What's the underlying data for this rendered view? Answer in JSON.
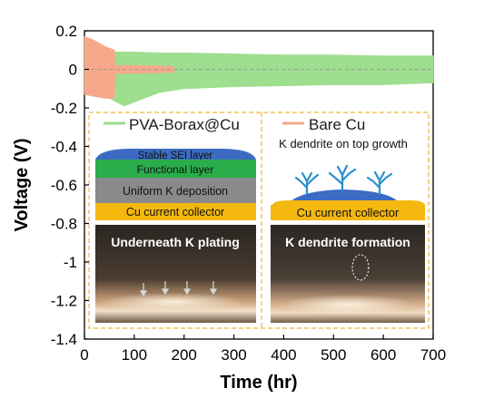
{
  "chart_data": {
    "type": "line",
    "xlabel": "Time (hr)",
    "ylabel": "Voltage (V)",
    "xlim": [
      0,
      700
    ],
    "ylim": [
      -1.4,
      0.2
    ],
    "xticks": [
      0,
      100,
      200,
      300,
      400,
      500,
      600,
      700
    ],
    "xtick_labels": [
      "0",
      "100",
      "200",
      "300",
      "400",
      "500",
      "600",
      "700"
    ],
    "yticks": [
      0.2,
      0,
      -0.2,
      -0.4,
      -0.6,
      -0.8,
      -1,
      -1.2,
      -1.4
    ],
    "ytick_labels": [
      "0.2",
      "0",
      "-0.2",
      "-0.4",
      "-0.6",
      "-0.8",
      "-1",
      "-1.2",
      "-1.4"
    ],
    "grid": false,
    "reference_line": {
      "y": 0,
      "color": "#9b9b9b",
      "style": "dashed"
    },
    "series": [
      {
        "name": "PVA-Borax@Cu",
        "color": "#9ede8f",
        "envelope_x": [
          5,
          30,
          50,
          80,
          100,
          150,
          200,
          300,
          400,
          500,
          600,
          700
        ],
        "envelope_upper": [
          0.11,
          0.1,
          0.09,
          0.09,
          0.09,
          0.085,
          0.085,
          0.08,
          0.075,
          0.075,
          0.07,
          0.07
        ],
        "envelope_lower": [
          -0.13,
          -0.14,
          -0.15,
          -0.19,
          -0.17,
          -0.12,
          -0.1,
          -0.09,
          -0.085,
          -0.08,
          -0.08,
          -0.07
        ]
      },
      {
        "name": "Bare Cu",
        "color": "#f6a98a",
        "envelope_x": [
          0,
          20,
          40,
          60,
          62,
          100,
          170,
          180
        ],
        "envelope_upper": [
          0.17,
          0.15,
          0.12,
          0.1,
          0.02,
          0.02,
          0.015,
          0.015
        ],
        "envelope_lower": [
          -0.13,
          -0.14,
          -0.15,
          -0.15,
          -0.02,
          -0.02,
          -0.015,
          -0.015
        ]
      }
    ],
    "legend": [
      {
        "label": "PVA-Borax@Cu",
        "color": "#9ede8f"
      },
      {
        "label": "Bare Cu",
        "color": "#f6a98a"
      }
    ],
    "inset": {
      "left_panel": {
        "layers": [
          {
            "label": "Stable SEI layer",
            "color": "#3b6bc2"
          },
          {
            "label": "Functional layer",
            "color": "#2aad4b"
          },
          {
            "label": "Uniform K deposition",
            "color": "#8a8a8a"
          },
          {
            "label": "Cu current collector",
            "color": "#f5b80f"
          }
        ],
        "photo_caption": "Underneath K plating"
      },
      "right_panel": {
        "title": "K dendrite on top growth",
        "layer": {
          "label": "Cu current collector",
          "color": "#f5b80f"
        },
        "photo_caption": "K dendrite formation"
      },
      "border_color": "#f2b33a"
    }
  }
}
